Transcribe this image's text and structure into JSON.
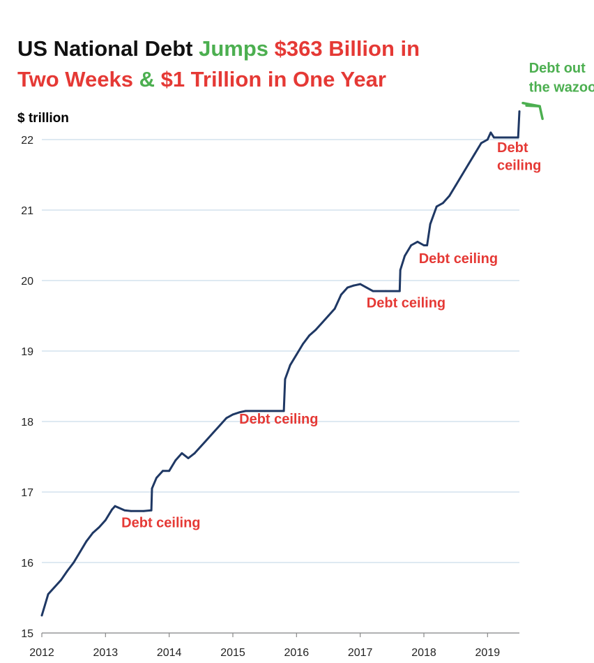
{
  "colors": {
    "dark": "#111111",
    "green": "#4CAF50",
    "red": "#E53935",
    "line": "#1F3864",
    "grid": "#C9DCEB"
  },
  "chart_data": {
    "type": "line",
    "title_parts": [
      {
        "text": "US National Debt ",
        "color": "dark"
      },
      {
        "text": "Jumps ",
        "color": "green"
      },
      {
        "text": "$363 Billion in",
        "color": "red"
      },
      {
        "text": "Two Weeks ",
        "color": "red",
        "line": 2
      },
      {
        "text": "& ",
        "color": "green",
        "line": 2
      },
      {
        "text": "$1 Trillion in One Year",
        "color": "red",
        "line": 2
      }
    ],
    "ylabel": "$ trillion",
    "xlim": [
      2012,
      2019.5
    ],
    "ylim": [
      15,
      22.25
    ],
    "x_ticks": [
      2012,
      2013,
      2014,
      2015,
      2016,
      2017,
      2018,
      2019
    ],
    "y_ticks": [
      15,
      16,
      17,
      18,
      19,
      20,
      21,
      22
    ],
    "grid": "horizontal",
    "series": [
      {
        "x": [
          2012.0,
          2012.05,
          2012.1,
          2012.2,
          2012.3,
          2012.4,
          2012.5,
          2012.6,
          2012.7,
          2012.8,
          2012.9,
          2013.0,
          2013.1,
          2013.15,
          2013.2,
          2013.3,
          2013.4,
          2013.6,
          2013.72,
          2013.73,
          2013.8,
          2013.9,
          2014.0,
          2014.1,
          2014.2,
          2014.3,
          2014.4,
          2014.5,
          2014.6,
          2014.7,
          2014.8,
          2014.9,
          2015.0,
          2015.1,
          2015.2,
          2015.5,
          2015.8,
          2015.82,
          2015.9,
          2016.0,
          2016.1,
          2016.2,
          2016.3,
          2016.4,
          2016.5,
          2016.6,
          2016.7,
          2016.8,
          2016.9,
          2017.0,
          2017.1,
          2017.2,
          2017.4,
          2017.62,
          2017.63,
          2017.7,
          2017.8,
          2017.9,
          2018.0,
          2018.05,
          2018.1,
          2018.2,
          2018.3,
          2018.4,
          2018.5,
          2018.6,
          2018.7,
          2018.8,
          2018.9,
          2019.0,
          2019.05,
          2019.1,
          2019.3,
          2019.48,
          2019.5
        ],
        "values": [
          15.25,
          15.4,
          15.55,
          15.65,
          15.75,
          15.88,
          16.0,
          16.15,
          16.3,
          16.42,
          16.5,
          16.6,
          16.75,
          16.8,
          16.78,
          16.74,
          16.73,
          16.73,
          16.74,
          17.05,
          17.2,
          17.3,
          17.3,
          17.45,
          17.55,
          17.48,
          17.55,
          17.65,
          17.75,
          17.85,
          17.95,
          18.05,
          18.1,
          18.13,
          18.15,
          18.15,
          18.15,
          18.6,
          18.8,
          18.95,
          19.1,
          19.22,
          19.3,
          19.4,
          19.5,
          19.6,
          19.8,
          19.9,
          19.93,
          19.95,
          19.9,
          19.85,
          19.85,
          19.85,
          20.15,
          20.35,
          20.5,
          20.55,
          20.5,
          20.5,
          20.8,
          21.05,
          21.1,
          21.2,
          21.35,
          21.5,
          21.65,
          21.8,
          21.95,
          22.0,
          22.1,
          22.03,
          22.03,
          22.03,
          22.4
        ]
      }
    ],
    "annotations": [
      {
        "text": "Debt ceiling",
        "color": "red",
        "x": 2013.25,
        "y": 16.5
      },
      {
        "text": "Debt ceiling",
        "color": "red",
        "x": 2015.1,
        "y": 17.97
      },
      {
        "text": "Debt ceiling",
        "color": "red",
        "x": 2017.1,
        "y": 19.62
      },
      {
        "text": "Debt ceiling",
        "color": "red",
        "x": 2017.92,
        "y": 20.25
      },
      {
        "text": "Debt",
        "color": "red",
        "x": 2019.15,
        "y": 21.82
      },
      {
        "text": "ceiling",
        "color": "red",
        "x": 2019.15,
        "y": 21.57
      },
      {
        "text": "Debt out",
        "color": "green",
        "x": 2019.65,
        "y": 22.95
      },
      {
        "text": "the wazoo",
        "color": "green",
        "x": 2019.65,
        "y": 22.68
      }
    ]
  }
}
